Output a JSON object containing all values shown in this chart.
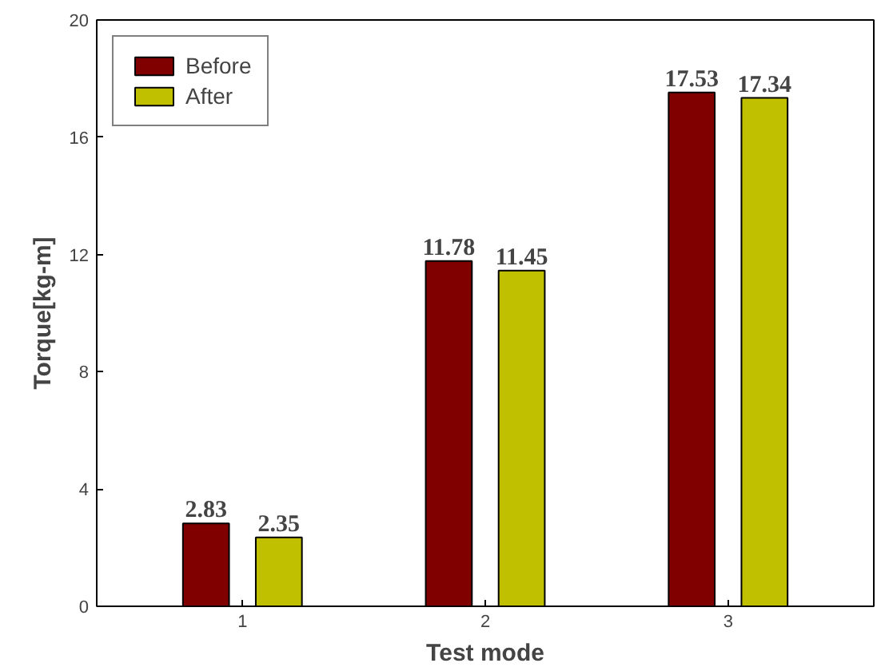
{
  "chart_data": {
    "type": "bar",
    "xlabel": "Test mode",
    "ylabel": "Torque[kg-m]",
    "categories": [
      "1",
      "2",
      "3"
    ],
    "series": [
      {
        "name": "Before",
        "color": "#800000",
        "values": [
          2.83,
          11.78,
          17.53
        ]
      },
      {
        "name": "After",
        "color": "#c0c000",
        "values": [
          2.35,
          11.45,
          17.34
        ]
      }
    ],
    "ylim": [
      0,
      20
    ],
    "yticks": [
      0,
      4,
      8,
      12,
      16,
      20
    ],
    "data_labels": true,
    "legend": "top left",
    "grid": false
  }
}
